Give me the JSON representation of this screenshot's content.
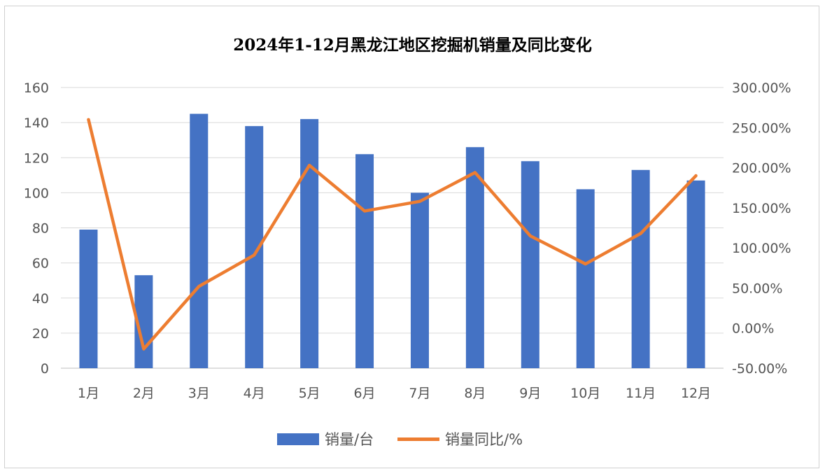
{
  "chart_data": {
    "type": "bar+line",
    "title": "2024年1-12月黑龙江地区挖掘机销量及同比变化",
    "categories": [
      "1月",
      "2月",
      "3月",
      "4月",
      "5月",
      "6月",
      "7月",
      "8月",
      "9月",
      "10月",
      "11月",
      "12月"
    ],
    "series": [
      {
        "name": "销量/台",
        "type": "bar",
        "axis": "left",
        "color": "#4472C4",
        "values": [
          79,
          53,
          145,
          138,
          142,
          122,
          100,
          126,
          118,
          102,
          113,
          107
        ]
      },
      {
        "name": "销量同比/%",
        "type": "line",
        "axis": "right",
        "color": "#ED7D31",
        "values": [
          260,
          -26,
          52,
          91,
          203,
          146,
          158,
          194,
          115,
          80,
          118,
          190
        ]
      }
    ],
    "ylim": [
      0,
      160
    ],
    "y_ticks": [
      "0",
      "20",
      "40",
      "60",
      "80",
      "100",
      "120",
      "140",
      "160"
    ],
    "y2lim": [
      -50,
      300
    ],
    "y2_ticks": [
      "-50.00%",
      "0.00%",
      "50.00%",
      "100.00%",
      "150.00%",
      "200.00%",
      "250.00%",
      "300.00%"
    ],
    "grid": true,
    "legend": "bottom"
  }
}
